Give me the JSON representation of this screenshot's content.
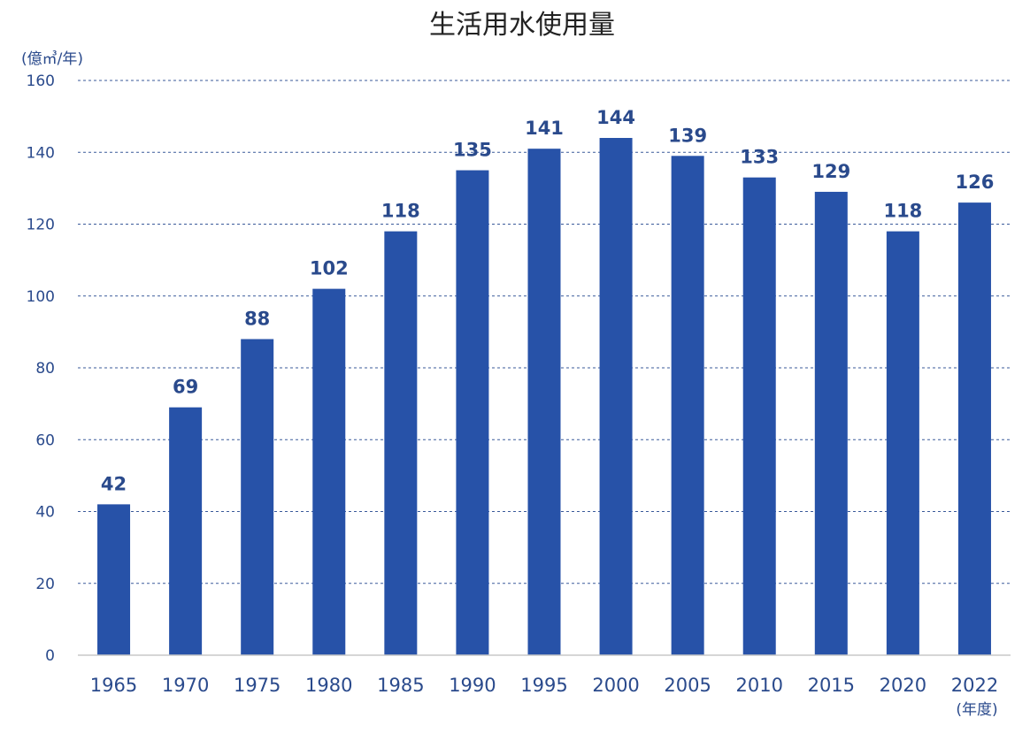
{
  "chart_data": {
    "type": "bar",
    "title": "生活用水使用量",
    "ylabel": "(億㎥/年)",
    "xlabel": "(年度)",
    "categories": [
      "1965",
      "1970",
      "1975",
      "1980",
      "1985",
      "1990",
      "1995",
      "2000",
      "2005",
      "2010",
      "2015",
      "2020",
      "2022"
    ],
    "values": [
      42,
      69,
      88,
      102,
      118,
      135,
      141,
      144,
      139,
      133,
      129,
      118,
      126
    ],
    "ylim": [
      0,
      160
    ],
    "yticks": [
      "0",
      "20",
      "40",
      "60",
      "80",
      "100",
      "120",
      "140",
      "160"
    ],
    "grid": true,
    "legend": "none",
    "colors": {
      "bar": "#2752a8",
      "text": "#2a4a8c"
    }
  }
}
